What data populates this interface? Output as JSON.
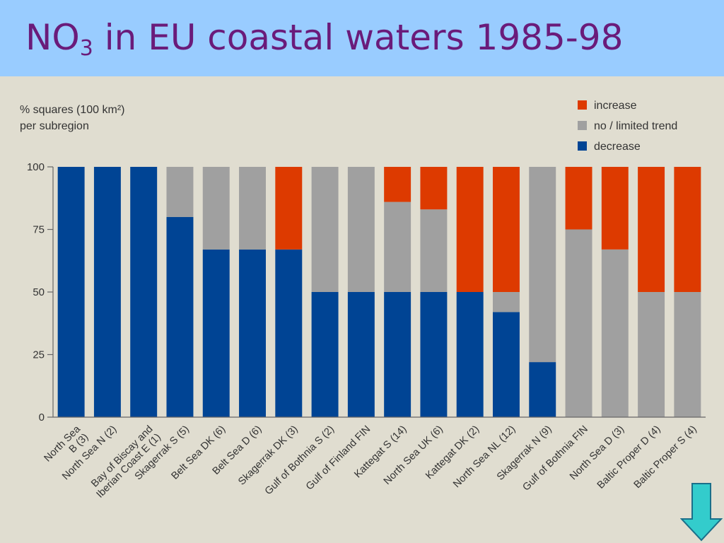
{
  "slide": {
    "title_main": "NO",
    "title_sub": "3",
    "title_rest": " in EU coastal waters 1985-98"
  },
  "icons": {
    "nav": "down-arrow-icon"
  },
  "chart_data": {
    "type": "bar",
    "stacked": true,
    "ylabel_lines": [
      "% squares (100 km²)",
      "per subregion"
    ],
    "ylim": [
      0,
      100
    ],
    "yticks": [
      0,
      25,
      50,
      75,
      100
    ],
    "ytick_labels": [
      "0",
      "25",
      "50",
      "75",
      "100"
    ],
    "legend_position": "top-right",
    "categories": [
      [
        "North Sea",
        "B (3)"
      ],
      [
        "North Sea N (2)"
      ],
      [
        "Bay of Biscay and",
        "Iberian Coast E (1)"
      ],
      [
        "Skagerrak S (5)"
      ],
      [
        "Belt Sea DK (6)"
      ],
      [
        "Belt Sea D (6)"
      ],
      [
        "Skagerrak DK (3)"
      ],
      [
        "Gulf of Bothnia S (2)"
      ],
      [
        "Gulf of Finland FIN"
      ],
      [
        "Kattegat S (14)"
      ],
      [
        "North Sea UK (6)"
      ],
      [
        "Kattegat DK (2)"
      ],
      [
        "North Sea NL (12)"
      ],
      [
        "Skagerrak N (9)"
      ],
      [
        "Gulf of Bothnia FIN"
      ],
      [
        "North Sea D (3)"
      ],
      [
        "Baltic Proper D (4)"
      ],
      [
        "Baltic Proper S (4)"
      ]
    ],
    "series": [
      {
        "name": "decrease",
        "color": "#004494",
        "values": [
          100,
          100,
          100,
          80,
          67,
          67,
          67,
          50,
          50,
          50,
          50,
          50,
          42,
          22,
          0,
          0,
          0,
          0
        ]
      },
      {
        "name": "no / limited trend",
        "color": "#a0a0a0",
        "values": [
          0,
          0,
          0,
          20,
          33,
          33,
          0,
          50,
          50,
          36,
          33,
          0,
          8,
          78,
          75,
          67,
          50,
          50
        ]
      },
      {
        "name": "increase",
        "color": "#dd3a00",
        "values": [
          0,
          0,
          0,
          0,
          0,
          0,
          33,
          0,
          0,
          14,
          17,
          50,
          50,
          0,
          25,
          33,
          50,
          50
        ]
      }
    ],
    "legend_order": [
      "increase",
      "no / limited trend",
      "decrease"
    ]
  }
}
